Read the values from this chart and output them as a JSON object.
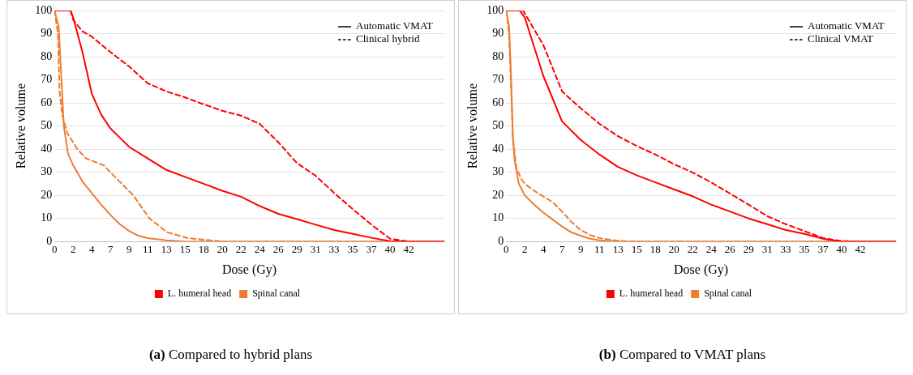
{
  "chart_data": [
    {
      "type": "line",
      "title": "(a) Compared to hybrid plans",
      "xlabel": "Dose (Gy)",
      "ylabel": "Relative volume",
      "annotations": [
        "Automatic VMAT",
        "Clinical hybrid"
      ],
      "xlim": [
        0,
        46
      ],
      "ylim": [
        0,
        100
      ],
      "yticks": [
        0,
        10,
        20,
        30,
        40,
        50,
        60,
        70,
        80,
        90,
        100
      ],
      "xticks": [
        0,
        {
          "value": 2.2,
          "label": "2"
        },
        {
          "value": 4.4,
          "label": "4"
        },
        {
          "value": 6.6,
          "label": "7"
        },
        {
          "value": 8.8,
          "label": "9"
        },
        11,
        {
          "value": 13.2,
          "label": "13"
        },
        {
          "value": 15.4,
          "label": "15"
        },
        {
          "value": 17.6,
          "label": "18"
        },
        {
          "value": 19.8,
          "label": "20"
        },
        22,
        {
          "value": 24.2,
          "label": "24"
        },
        {
          "value": 26.4,
          "label": "26"
        },
        {
          "value": 28.6,
          "label": "29"
        },
        {
          "value": 30.8,
          "label": "31"
        },
        33,
        {
          "value": 35.2,
          "label": "35"
        },
        {
          "value": 37.4,
          "label": "37"
        },
        {
          "value": 39.6,
          "label": "40"
        },
        {
          "value": 41.8,
          "label": "42"
        }
      ],
      "grid": "y",
      "legend": "bottom",
      "marker": "none",
      "series": [
        {
          "name": "L. humeral head",
          "color": "#ff0000",
          "line_style": "solid",
          "x": [
            0,
            1.9,
            2.2,
            3.3,
            4.4,
            5.5,
            6.6,
            7.7,
            8.8,
            11,
            13.2,
            15.4,
            17.6,
            19.8,
            22,
            24.2,
            26.4,
            28.6,
            30.8,
            33,
            35.2,
            37.4,
            39.6,
            41.8,
            46
          ],
          "values": [
            100,
            100,
            97,
            82,
            64,
            55,
            49,
            45,
            41,
            36,
            31,
            28,
            25,
            22,
            19.4,
            15.4,
            12,
            9.7,
            7.3,
            5,
            3.3,
            1.6,
            0.2,
            0,
            0
          ]
        },
        {
          "name": "Spinal canal",
          "color": "#ed7d31",
          "line_style": "solid",
          "x": [
            0,
            0.5,
            1.1,
            1.6,
            2.2,
            3.3,
            4.4,
            5.5,
            6.6,
            7.7,
            8.8,
            9.9,
            11,
            13.2,
            15.4,
            46
          ],
          "values": [
            100,
            93,
            50,
            38,
            33,
            26,
            21,
            16,
            11.5,
            7.5,
            4.6,
            2.5,
            1.5,
            0.5,
            0,
            0
          ]
        },
        {
          "color": "#ff0000",
          "line_style": "dashed",
          "x": [
            0,
            1.9,
            2.2,
            3.3,
            4.4,
            6.6,
            8.8,
            11,
            13.2,
            15.4,
            17.6,
            19.8,
            22,
            24.2,
            26.4,
            28.6,
            30.8,
            33,
            35.2,
            37.4,
            39.6,
            41.8,
            46
          ],
          "values": [
            100,
            100,
            96,
            91,
            88.7,
            82,
            75.8,
            68.5,
            65,
            62.4,
            59.4,
            56.6,
            54.5,
            51,
            43,
            34,
            28.5,
            21,
            14,
            7.3,
            1.2,
            0,
            0
          ]
        },
        {
          "color": "#ed7d31",
          "line_style": "dashed",
          "x": [
            0,
            0.4,
            0.6,
            0.9,
            1.5,
            2.7,
            3.7,
            5.8,
            7.4,
            9.3,
            11.2,
            13.3,
            15.7,
            18.4,
            20,
            46
          ],
          "values": [
            100,
            90,
            65,
            55,
            47,
            40,
            36,
            33,
            27,
            20,
            10,
            4,
            1.5,
            0.5,
            0,
            0
          ]
        }
      ]
    },
    {
      "type": "line",
      "title": "(b) Compared to VMAT plans",
      "xlabel": "Dose (Gy)",
      "ylabel": "Relative volume",
      "annotations": [
        "Automatic VMAT",
        "Clinical VMAT"
      ],
      "xlim": [
        0,
        46
      ],
      "ylim": [
        0,
        100
      ],
      "yticks": [
        0,
        10,
        20,
        30,
        40,
        50,
        60,
        70,
        80,
        90,
        100
      ],
      "xticks": [
        0,
        {
          "value": 2.2,
          "label": "2"
        },
        {
          "value": 4.4,
          "label": "4"
        },
        {
          "value": 6.6,
          "label": "7"
        },
        {
          "value": 8.8,
          "label": "9"
        },
        11,
        {
          "value": 13.2,
          "label": "13"
        },
        {
          "value": 15.4,
          "label": "15"
        },
        {
          "value": 17.6,
          "label": "18"
        },
        {
          "value": 19.8,
          "label": "20"
        },
        22,
        {
          "value": 24.2,
          "label": "24"
        },
        {
          "value": 26.4,
          "label": "26"
        },
        {
          "value": 28.6,
          "label": "29"
        },
        {
          "value": 30.8,
          "label": "31"
        },
        33,
        {
          "value": 35.2,
          "label": "35"
        },
        {
          "value": 37.4,
          "label": "37"
        },
        {
          "value": 39.6,
          "label": "40"
        },
        {
          "value": 41.8,
          "label": "42"
        }
      ],
      "grid": "y",
      "legend": "bottom",
      "marker": "none",
      "series": [
        {
          "name": "L. humeral head",
          "color": "#ff0000",
          "line_style": "solid",
          "x": [
            0,
            1.6,
            2.2,
            4.4,
            6.6,
            8.8,
            11,
            13.2,
            15.4,
            17.6,
            19.8,
            22,
            24.2,
            26.4,
            28.6,
            30.8,
            33,
            35.2,
            37.4,
            39.6,
            46
          ],
          "values": [
            100,
            100,
            97,
            71.6,
            52,
            44,
            37.7,
            32.3,
            28.7,
            25.6,
            22.6,
            19.6,
            16,
            13,
            10,
            7.5,
            5,
            3.3,
            1.2,
            0,
            0
          ]
        },
        {
          "name": "Spinal canal",
          "color": "#ed7d31",
          "line_style": "solid",
          "x": [
            0,
            0.35,
            0.6,
            0.8,
            1,
            1.5,
            2.2,
            3.3,
            4.4,
            5.5,
            6.6,
            7.7,
            8.8,
            9.9,
            11,
            13.2,
            46
          ],
          "values": [
            100,
            93,
            70,
            45,
            35,
            25,
            20,
            16,
            12.5,
            9.5,
            6.5,
            4,
            2.5,
            1.2,
            0.5,
            0,
            0
          ]
        },
        {
          "color": "#ff0000",
          "line_style": "dashed",
          "x": [
            0,
            2,
            4.4,
            6.6,
            8.8,
            11,
            13.2,
            15.4,
            17.6,
            19.8,
            22,
            24.2,
            26.4,
            28.6,
            30.8,
            33,
            35.2,
            37.4,
            39.6,
            41.8,
            46
          ],
          "values": [
            100,
            100,
            85,
            65,
            57.7,
            51,
            45.6,
            41.4,
            37.7,
            33.5,
            29.9,
            25.6,
            20.8,
            16,
            11,
            7.5,
            4.5,
            1.5,
            0.2,
            0,
            0
          ]
        },
        {
          "color": "#ed7d31",
          "line_style": "dashed",
          "x": [
            0,
            0.35,
            0.8,
            1.2,
            1.8,
            2.2,
            3.3,
            4.4,
            5.5,
            6.6,
            7.7,
            8.8,
            9.9,
            11,
            13.2,
            15.4,
            46
          ],
          "values": [
            100,
            90,
            45,
            32,
            27,
            25,
            22,
            19.5,
            17,
            13,
            8.5,
            5,
            2.8,
            1.5,
            0.3,
            0,
            0
          ]
        }
      ]
    }
  ]
}
